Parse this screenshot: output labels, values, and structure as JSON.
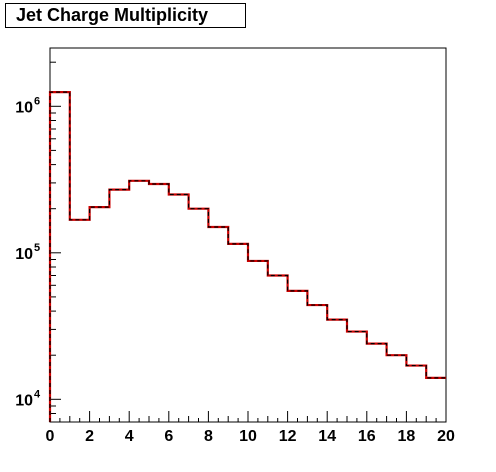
{
  "title": "Jet Charge Multiplicity",
  "colors": {
    "line_outer": "#cc0000",
    "line_inner": "#000000",
    "frame": "#000000"
  },
  "chart_data": {
    "type": "histogram",
    "title": "Jet Charge Multiplicity",
    "xlabel": "",
    "ylabel": "",
    "xlim": [
      0,
      20
    ],
    "ylim": [
      7000,
      2500000
    ],
    "yscale": "log",
    "bin_width": 1,
    "bins": [
      0,
      1,
      2,
      3,
      4,
      5,
      6,
      7,
      8,
      9,
      10,
      11,
      12,
      13,
      14,
      15,
      16,
      17,
      18,
      19
    ],
    "values": [
      1250000,
      168000,
      205000,
      270000,
      310000,
      295000,
      250000,
      200000,
      150000,
      115000,
      88000,
      70000,
      55000,
      44000,
      35000,
      29000,
      24000,
      20000,
      17000,
      14000
    ],
    "x_ticks": [
      "0",
      "2",
      "4",
      "6",
      "8",
      "10",
      "12",
      "14",
      "16",
      "18",
      "20"
    ],
    "x_tick_values": [
      0,
      2,
      4,
      6,
      8,
      10,
      12,
      14,
      16,
      18,
      20
    ],
    "y_ticks": [
      {
        "value": 10000,
        "base": "10",
        "exp": "4"
      },
      {
        "value": 100000,
        "base": "10",
        "exp": "5"
      },
      {
        "value": 1000000,
        "base": "10",
        "exp": "6"
      }
    ],
    "grid": false,
    "legend": "none"
  }
}
